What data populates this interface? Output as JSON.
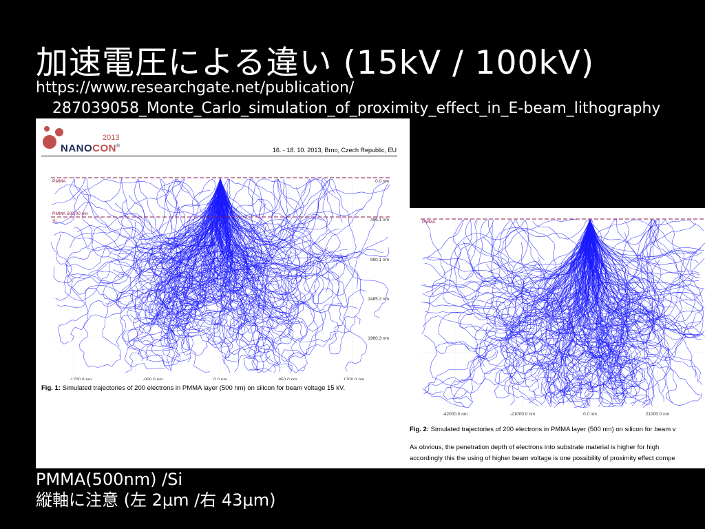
{
  "slide": {
    "title": "加速電圧による違い (15kV / 100kV)",
    "source_line1": "https://www.researchgate.net/publication/",
    "source_line2": "287039058_Monte_Carlo_simulation_of_proximity_effect_in_E-beam_lithography",
    "caption_line1": "PMMA(500nm) /Si",
    "caption_line2": "縦軸に注意 (左 2μm /右 43μm)"
  },
  "paper": {
    "logo_year": "2013",
    "logo_prefix": "NANO",
    "logo_accent": "CON",
    "logo_mark": "®",
    "conference": "16. - 18. 10. 2013, Brno, Czech Republic, EU",
    "fig1_label": "Fig. 1:",
    "fig1_text": " Simulated trajectories of 200 electrons in PMMA layer (500 nm) on silicon for beam voltage 15 kV.",
    "fig2_label": "Fig. 2:",
    "fig2_text": " Simulated trajectories of 200 electrons in PMMA layer (500 nm) on silicon for beam v",
    "body_line1": "As obvious, the penetration depth of electrons into substrate material is higher for high",
    "body_line2": "accordingly this the using of higher beam voltage is one possibility of proximity effect compe"
  },
  "colors": {
    "trajectory": "#1a1aff",
    "layer_line": "#8b1a4a",
    "logo_red": "#c0504d",
    "logo_navy": "#1f2d55"
  },
  "sim_left": {
    "beam_voltage_kv": 15,
    "electrons": 200,
    "layer_labels": [
      "PMMA",
      "PMMA 500.00 nm",
      "Si"
    ],
    "x_ticks": [
      "-1700.0 nm",
      "-850.0 nm",
      "0.0 nm",
      "850.0 nm",
      "1700.0 nm"
    ],
    "y_ticks": [
      "0.0 nm",
      "495.1 nm",
      "990.1 nm",
      "1485.2 nm",
      "1980.3 nm"
    ]
  },
  "sim_right": {
    "electrons": 200,
    "layer_labels": [
      "PMMA"
    ],
    "x_ticks": [
      "-42000.0 nm",
      "-21000.0 nm",
      "0.0 nm",
      "21000.0 nm"
    ]
  }
}
